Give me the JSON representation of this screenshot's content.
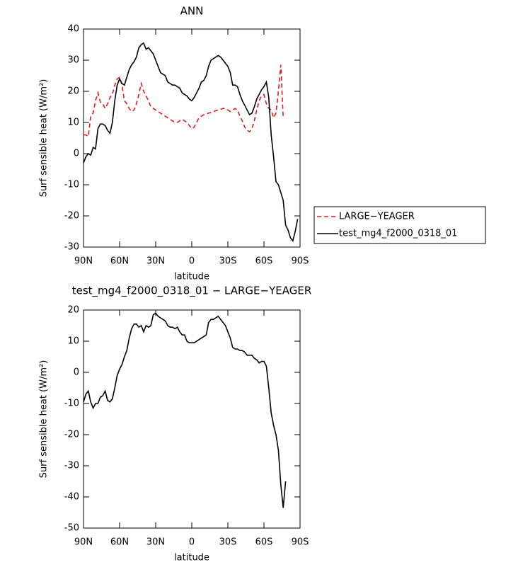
{
  "chart_data": [
    {
      "type": "line",
      "title": "ANN",
      "xlabel": "latitude",
      "ylabel": "Surf sensible heat (W/m²)",
      "x": [
        90,
        88,
        86,
        84,
        82,
        80,
        78,
        76,
        74,
        72,
        70,
        68,
        66,
        64,
        62,
        60,
        58,
        56,
        54,
        52,
        50,
        48,
        46,
        44,
        42,
        40,
        38,
        36,
        34,
        32,
        30,
        28,
        26,
        24,
        22,
        20,
        18,
        16,
        14,
        12,
        10,
        8,
        6,
        4,
        2,
        0,
        -2,
        -4,
        -6,
        -8,
        -10,
        -12,
        -14,
        -16,
        -18,
        -20,
        -22,
        -24,
        -26,
        -28,
        -30,
        -32,
        -34,
        -36,
        -38,
        -40,
        -42,
        -44,
        -46,
        -48,
        -50,
        -52,
        -54,
        -56,
        -58,
        -60,
        -62,
        -64,
        -66,
        -68,
        -70,
        -72,
        -74,
        -76,
        -78,
        -80,
        -82,
        -84,
        -86,
        -88
      ],
      "series": [
        {
          "name": "LARGE−YEAGER",
          "color": "#e41a1c",
          "linestyle": "dashed",
          "values": [
            6,
            6,
            5.5,
            12,
            13,
            17,
            19.5,
            16.5,
            16,
            14.5,
            16,
            18,
            19,
            22,
            24,
            24.5,
            22,
            17,
            16,
            14.5,
            13.5,
            14,
            16,
            19,
            22.5,
            20,
            18.5,
            17,
            15,
            14.5,
            14,
            13.5,
            13,
            12.5,
            12,
            11.5,
            11,
            10.5,
            10,
            10,
            10.5,
            11,
            10.5,
            10,
            9,
            8,
            8.5,
            10,
            11.5,
            12,
            12.5,
            12.7,
            13,
            13.2,
            13.5,
            13.8,
            14,
            14.2,
            14.5,
            14.5,
            14,
            13.5,
            14,
            14.5,
            14,
            12,
            10.5,
            8.5,
            7.5,
            7,
            8,
            10.5,
            14,
            17,
            18.5,
            19,
            16,
            14.5,
            14,
            11.5,
            13,
            20,
            28.5,
            11.5,
            null,
            null,
            null,
            null,
            null,
            null
          ]
        },
        {
          "name": "test_mg4_f2000_0318_01",
          "color": "#000000",
          "linestyle": "solid",
          "values": [
            -3,
            -1,
            0,
            -0.5,
            2,
            1.5,
            8,
            9.5,
            9.5,
            9,
            7.5,
            6.5,
            10,
            17,
            22,
            24,
            22.5,
            22,
            24.5,
            27,
            28.5,
            29.5,
            31,
            34,
            35,
            35.5,
            33.5,
            34,
            33,
            32,
            30,
            28,
            26,
            25.5,
            25,
            23,
            22.5,
            22,
            22,
            21.5,
            21,
            19.5,
            19,
            18.5,
            17.5,
            17,
            18,
            19.5,
            21,
            23,
            23.5,
            25,
            28,
            30,
            30.5,
            31,
            31.5,
            31,
            30,
            29,
            28,
            26,
            22,
            22,
            21.5,
            19,
            17,
            15.5,
            14,
            12.5,
            13,
            15,
            17.5,
            19,
            20.5,
            21.5,
            23,
            18,
            6,
            -1,
            -9,
            -10,
            -12.5,
            -15,
            -23,
            -24.5,
            -27,
            -28,
            -25,
            -21
          ]
        }
      ],
      "xlim": [
        90,
        -90
      ],
      "xticks": [
        {
          "value": 90,
          "label": "90N"
        },
        {
          "value": 60,
          "label": "60N"
        },
        {
          "value": 30,
          "label": "30N"
        },
        0,
        {
          "value": -30,
          "label": "30S"
        },
        {
          "value": -60,
          "label": "60S"
        },
        {
          "value": -90,
          "label": "90S"
        }
      ],
      "ylim": [
        -30,
        40
      ],
      "yticks": [
        -30,
        -20,
        -10,
        0,
        10,
        20,
        30,
        40
      ],
      "legend": "right"
    },
    {
      "type": "line",
      "title": "test_mg4_f2000_0318_01 − LARGE−YEAGER",
      "xlabel": "latitude",
      "ylabel": "Surf sensible heat (W/m²)",
      "x": [
        90,
        88,
        86,
        84,
        82,
        80,
        78,
        76,
        74,
        72,
        70,
        68,
        66,
        64,
        62,
        60,
        58,
        56,
        54,
        52,
        50,
        48,
        46,
        44,
        42,
        40,
        38,
        36,
        34,
        32,
        30,
        28,
        26,
        24,
        22,
        20,
        18,
        16,
        14,
        12,
        10,
        8,
        6,
        4,
        2,
        0,
        -2,
        -4,
        -6,
        -8,
        -10,
        -12,
        -14,
        -16,
        -18,
        -20,
        -22,
        -24,
        -26,
        -28,
        -30,
        -32,
        -34,
        -36,
        -38,
        -40,
        -42,
        -44,
        -46,
        -48,
        -50,
        -52,
        -54,
        -56,
        -58,
        -60,
        -62,
        -64,
        -66,
        -68,
        -70,
        -72,
        -74,
        -76,
        -78
      ],
      "series": [
        {
          "color": "#000000",
          "linestyle": "solid",
          "values": [
            -9.5,
            -7,
            -6,
            -9.5,
            -11.5,
            -10,
            -10,
            -8,
            -7.5,
            -6,
            -9,
            -9.5,
            -8.5,
            -5,
            -1,
            1,
            2.5,
            5,
            7,
            11,
            14,
            15.5,
            15.5,
            14.5,
            15,
            13,
            15,
            14.5,
            15,
            18.5,
            19,
            18,
            17.5,
            17,
            16.5,
            15,
            14.5,
            14.5,
            14,
            14.5,
            13,
            12,
            12,
            10,
            9.5,
            9.5,
            9.5,
            10,
            10.5,
            11,
            11.5,
            12,
            16,
            17,
            17,
            17.5,
            18,
            17,
            16,
            15,
            13,
            11,
            8,
            7.5,
            7.5,
            7,
            7,
            6.5,
            5.5,
            5.5,
            5.5,
            4.5,
            4,
            3,
            3.5,
            3.5,
            2,
            -5,
            -13,
            -17,
            -20,
            -25,
            -36,
            -43.5,
            -35
          ]
        }
      ],
      "xlim": [
        90,
        -90
      ],
      "xticks": [
        {
          "value": 90,
          "label": "90N"
        },
        {
          "value": 60,
          "label": "60N"
        },
        {
          "value": 30,
          "label": "30N"
        },
        0,
        {
          "value": -30,
          "label": "30S"
        },
        {
          "value": -60,
          "label": "60S"
        },
        {
          "value": -90,
          "label": "90S"
        }
      ],
      "ylim": [
        -50,
        20
      ],
      "yticks": [
        -50,
        -40,
        -30,
        -20,
        -10,
        0,
        10,
        20
      ]
    }
  ]
}
